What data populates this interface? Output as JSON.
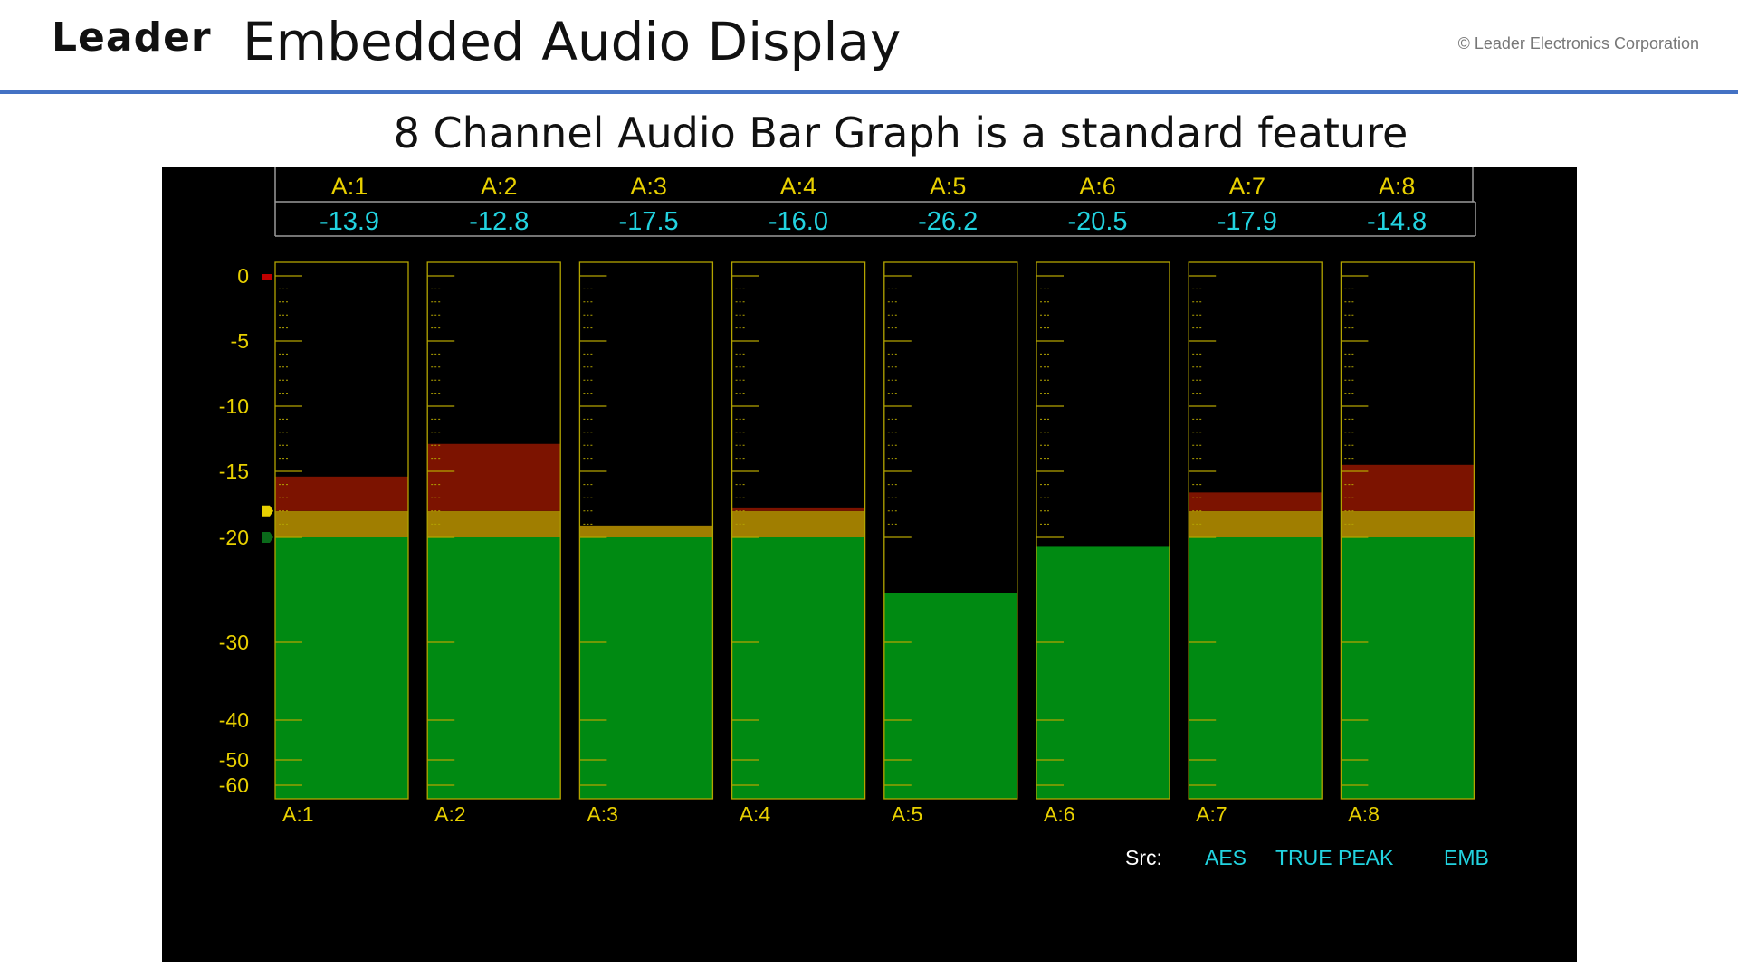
{
  "header": {
    "logo": "Leader",
    "title": "Embedded Audio Display",
    "copyright": "© Leader Electronics Corporation"
  },
  "subtitle": "8 Channel Audio Bar Graph is a standard feature",
  "colors": {
    "accent_rule": "#4472c4",
    "panel_bg": "#000000",
    "label_yellow": "#e8d000",
    "value_cyan": "#22d3e0",
    "bar_green": "#008a12",
    "bar_amber": "#a07e00",
    "bar_red": "#7c1300",
    "frame": "#b3a400"
  },
  "chart_data": {
    "type": "bar",
    "categories": [
      "A:1",
      "A:2",
      "A:3",
      "A:4",
      "A:5",
      "A:6",
      "A:7",
      "A:8"
    ],
    "values": [
      -15.4,
      -12.9,
      -19.1,
      -17.8,
      -25.3,
      -20.9,
      -16.6,
      -14.5
    ],
    "readouts": [
      "-13.9",
      "-12.8",
      "-17.5",
      "-16.0",
      "-26.2",
      "-20.5",
      "-17.9",
      "-14.8"
    ],
    "y_ticks": [
      "0",
      "-5",
      "-10",
      "-15",
      "-20",
      "-30",
      "-40",
      "-50",
      "-60"
    ],
    "thresholds": {
      "amber": -20,
      "red": -18
    },
    "status": {
      "src_label": "Src:",
      "src_value": "AES",
      "mode": "TRUE PEAK",
      "input": "EMB"
    },
    "title": "",
    "xlabel": "",
    "ylabel": ""
  }
}
